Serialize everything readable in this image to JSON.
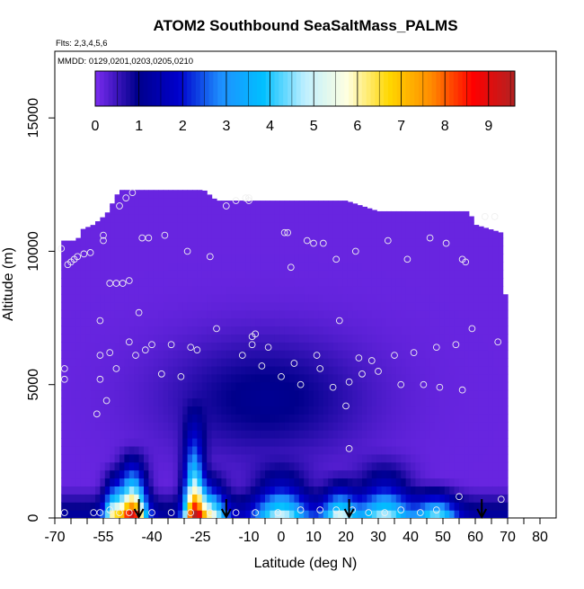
{
  "chart_data": {
    "type": "heatmap",
    "title": "ATOM2 Southbound SeaSaltMass_PALMS",
    "flights_note": "Flts: 2,3,4,5,6",
    "dates_note": "MMDD: 0129,0201,0203,0205,0210",
    "xlabel": "Latitude (deg N)",
    "ylabel": "Altitude (m)",
    "xlim": [
      -70,
      85
    ],
    "ylim": [
      0,
      17500
    ],
    "x_ticks": [
      -70,
      -55,
      -40,
      -25,
      -10,
      0,
      10,
      20,
      30,
      40,
      50,
      60,
      70,
      80
    ],
    "x_minor_ticks": [
      -65,
      -60,
      -50,
      -45,
      -35,
      -30,
      -20,
      -15,
      -5,
      5,
      15,
      25,
      35,
      45,
      55,
      65,
      75
    ],
    "y_ticks": [
      0,
      5000,
      10000,
      15000
    ],
    "colorbar": {
      "min": 0,
      "max": 9.6,
      "ticks": [
        0,
        1,
        2,
        3,
        4,
        5,
        6,
        7,
        8,
        9
      ],
      "colors": [
        "#7B2CF0",
        "#00008B",
        "#0000CD",
        "#1E90FF",
        "#00BFFF",
        "#BFEFFF",
        "#FFFFE0",
        "#FFD700",
        "#FF8C00",
        "#FF0000",
        "#B22222"
      ]
    },
    "domain_top": [
      {
        "x": -68,
        "y": 10400
      },
      {
        "x": -63,
        "y": 10400
      },
      {
        "x": -62,
        "y": 10800
      },
      {
        "x": -58,
        "y": 11000
      },
      {
        "x": -54,
        "y": 11400
      },
      {
        "x": -50,
        "y": 12300
      },
      {
        "x": -32,
        "y": 12300
      },
      {
        "x": -24,
        "y": 12300
      },
      {
        "x": -20,
        "y": 11900
      },
      {
        "x": 0,
        "y": 11900
      },
      {
        "x": 20,
        "y": 11900
      },
      {
        "x": 30,
        "y": 11500
      },
      {
        "x": 58,
        "y": 11500
      },
      {
        "x": 60,
        "y": 11000
      },
      {
        "x": 68,
        "y": 10700
      },
      {
        "x": 70,
        "y": 7000
      }
    ],
    "plumes": [
      {
        "center": -46,
        "width": 4,
        "top": 3000,
        "peak": 8.6
      },
      {
        "center": -52,
        "width": 3,
        "top": 2300,
        "peak": 4.6
      },
      {
        "center": -27,
        "width": 3,
        "top": 4800,
        "peak": 7.2
      },
      {
        "center": -22,
        "width": 5,
        "top": 2200,
        "peak": 4.8
      },
      {
        "center": 0,
        "width": 8,
        "top": 2600,
        "peak": 4.0
      },
      {
        "center": 18,
        "width": 5,
        "top": 2000,
        "peak": 4.2
      },
      {
        "center": 32,
        "width": 8,
        "top": 2800,
        "peak": 3.8
      },
      {
        "center": 48,
        "width": 6,
        "top": 1600,
        "peak": 3.6
      }
    ],
    "observation_points": [
      [
        -68,
        10100
      ],
      [
        -67,
        5600
      ],
      [
        -67,
        5200
      ],
      [
        -66,
        9500
      ],
      [
        -65,
        9600
      ],
      [
        -64,
        9700
      ],
      [
        -63,
        9800
      ],
      [
        -61,
        9900
      ],
      [
        -59,
        9950
      ],
      [
        -57,
        3900
      ],
      [
        -56,
        6100
      ],
      [
        -56,
        7400
      ],
      [
        -56,
        5200
      ],
      [
        -55,
        10400
      ],
      [
        -55,
        10600
      ],
      [
        -54,
        4400
      ],
      [
        -53,
        6200
      ],
      [
        -53,
        8800
      ],
      [
        -51,
        5600
      ],
      [
        -51,
        8800
      ],
      [
        -50,
        11700
      ],
      [
        -49,
        8800
      ],
      [
        -48,
        12000
      ],
      [
        -47,
        6600
      ],
      [
        -47,
        8900
      ],
      [
        -46,
        12200
      ],
      [
        -45,
        6100
      ],
      [
        -44,
        7700
      ],
      [
        -43,
        10500
      ],
      [
        -42,
        6300
      ],
      [
        -41,
        10500
      ],
      [
        -40,
        6500
      ],
      [
        -37,
        5400
      ],
      [
        -36,
        10600
      ],
      [
        -34,
        6500
      ],
      [
        -31,
        5300
      ],
      [
        -29,
        10000
      ],
      [
        -28,
        6400
      ],
      [
        -26,
        6300
      ],
      [
        -22,
        9800
      ],
      [
        -20,
        7100
      ],
      [
        -17,
        11700
      ],
      [
        -14,
        11900
      ],
      [
        -12,
        6100
      ],
      [
        -11,
        12000
      ],
      [
        -10,
        12000
      ],
      [
        -10,
        11900
      ],
      [
        -9,
        6800
      ],
      [
        -9,
        6500
      ],
      [
        -8,
        6900
      ],
      [
        -6,
        5700
      ],
      [
        -4,
        6400
      ],
      [
        0,
        5300
      ],
      [
        1,
        10700
      ],
      [
        2,
        10700
      ],
      [
        3,
        9400
      ],
      [
        4,
        5800
      ],
      [
        6,
        5000
      ],
      [
        8,
        10400
      ],
      [
        10,
        10300
      ],
      [
        11,
        6100
      ],
      [
        12,
        5600
      ],
      [
        13,
        10300
      ],
      [
        16,
        4900
      ],
      [
        17,
        9700
      ],
      [
        18,
        7400
      ],
      [
        20,
        4200
      ],
      [
        21,
        2600
      ],
      [
        21,
        5100
      ],
      [
        23,
        10000
      ],
      [
        24,
        6000
      ],
      [
        25,
        5400
      ],
      [
        28,
        5900
      ],
      [
        30,
        5500
      ],
      [
        33,
        10400
      ],
      [
        35,
        6100
      ],
      [
        37,
        5000
      ],
      [
        39,
        9700
      ],
      [
        41,
        6200
      ],
      [
        44,
        5000
      ],
      [
        46,
        10500
      ],
      [
        48,
        6400
      ],
      [
        49,
        4900
      ],
      [
        51,
        10300
      ],
      [
        54,
        6500
      ],
      [
        56,
        4800
      ],
      [
        56,
        9700
      ],
      [
        57,
        9600
      ],
      [
        59,
        7100
      ],
      [
        63,
        11300
      ],
      [
        66,
        11300
      ],
      [
        67,
        6600
      ],
      [
        68,
        700
      ],
      [
        -67,
        200
      ],
      [
        -58,
        200
      ],
      [
        -56,
        200
      ],
      [
        -53,
        300
      ],
      [
        -50,
        200
      ],
      [
        -47,
        200
      ],
      [
        -44,
        200
      ],
      [
        -40,
        200
      ],
      [
        -34,
        200
      ],
      [
        -28,
        200
      ],
      [
        -22,
        200
      ],
      [
        -14,
        200
      ],
      [
        -8,
        200
      ],
      [
        -1,
        200
      ],
      [
        6,
        300
      ],
      [
        12,
        300
      ],
      [
        17,
        300
      ],
      [
        22,
        300
      ],
      [
        27,
        200
      ],
      [
        32,
        200
      ],
      [
        37,
        300
      ],
      [
        43,
        200
      ],
      [
        48,
        300
      ],
      [
        55,
        800
      ]
    ],
    "flight_arrows": [
      -44,
      -17,
      21,
      62
    ]
  }
}
